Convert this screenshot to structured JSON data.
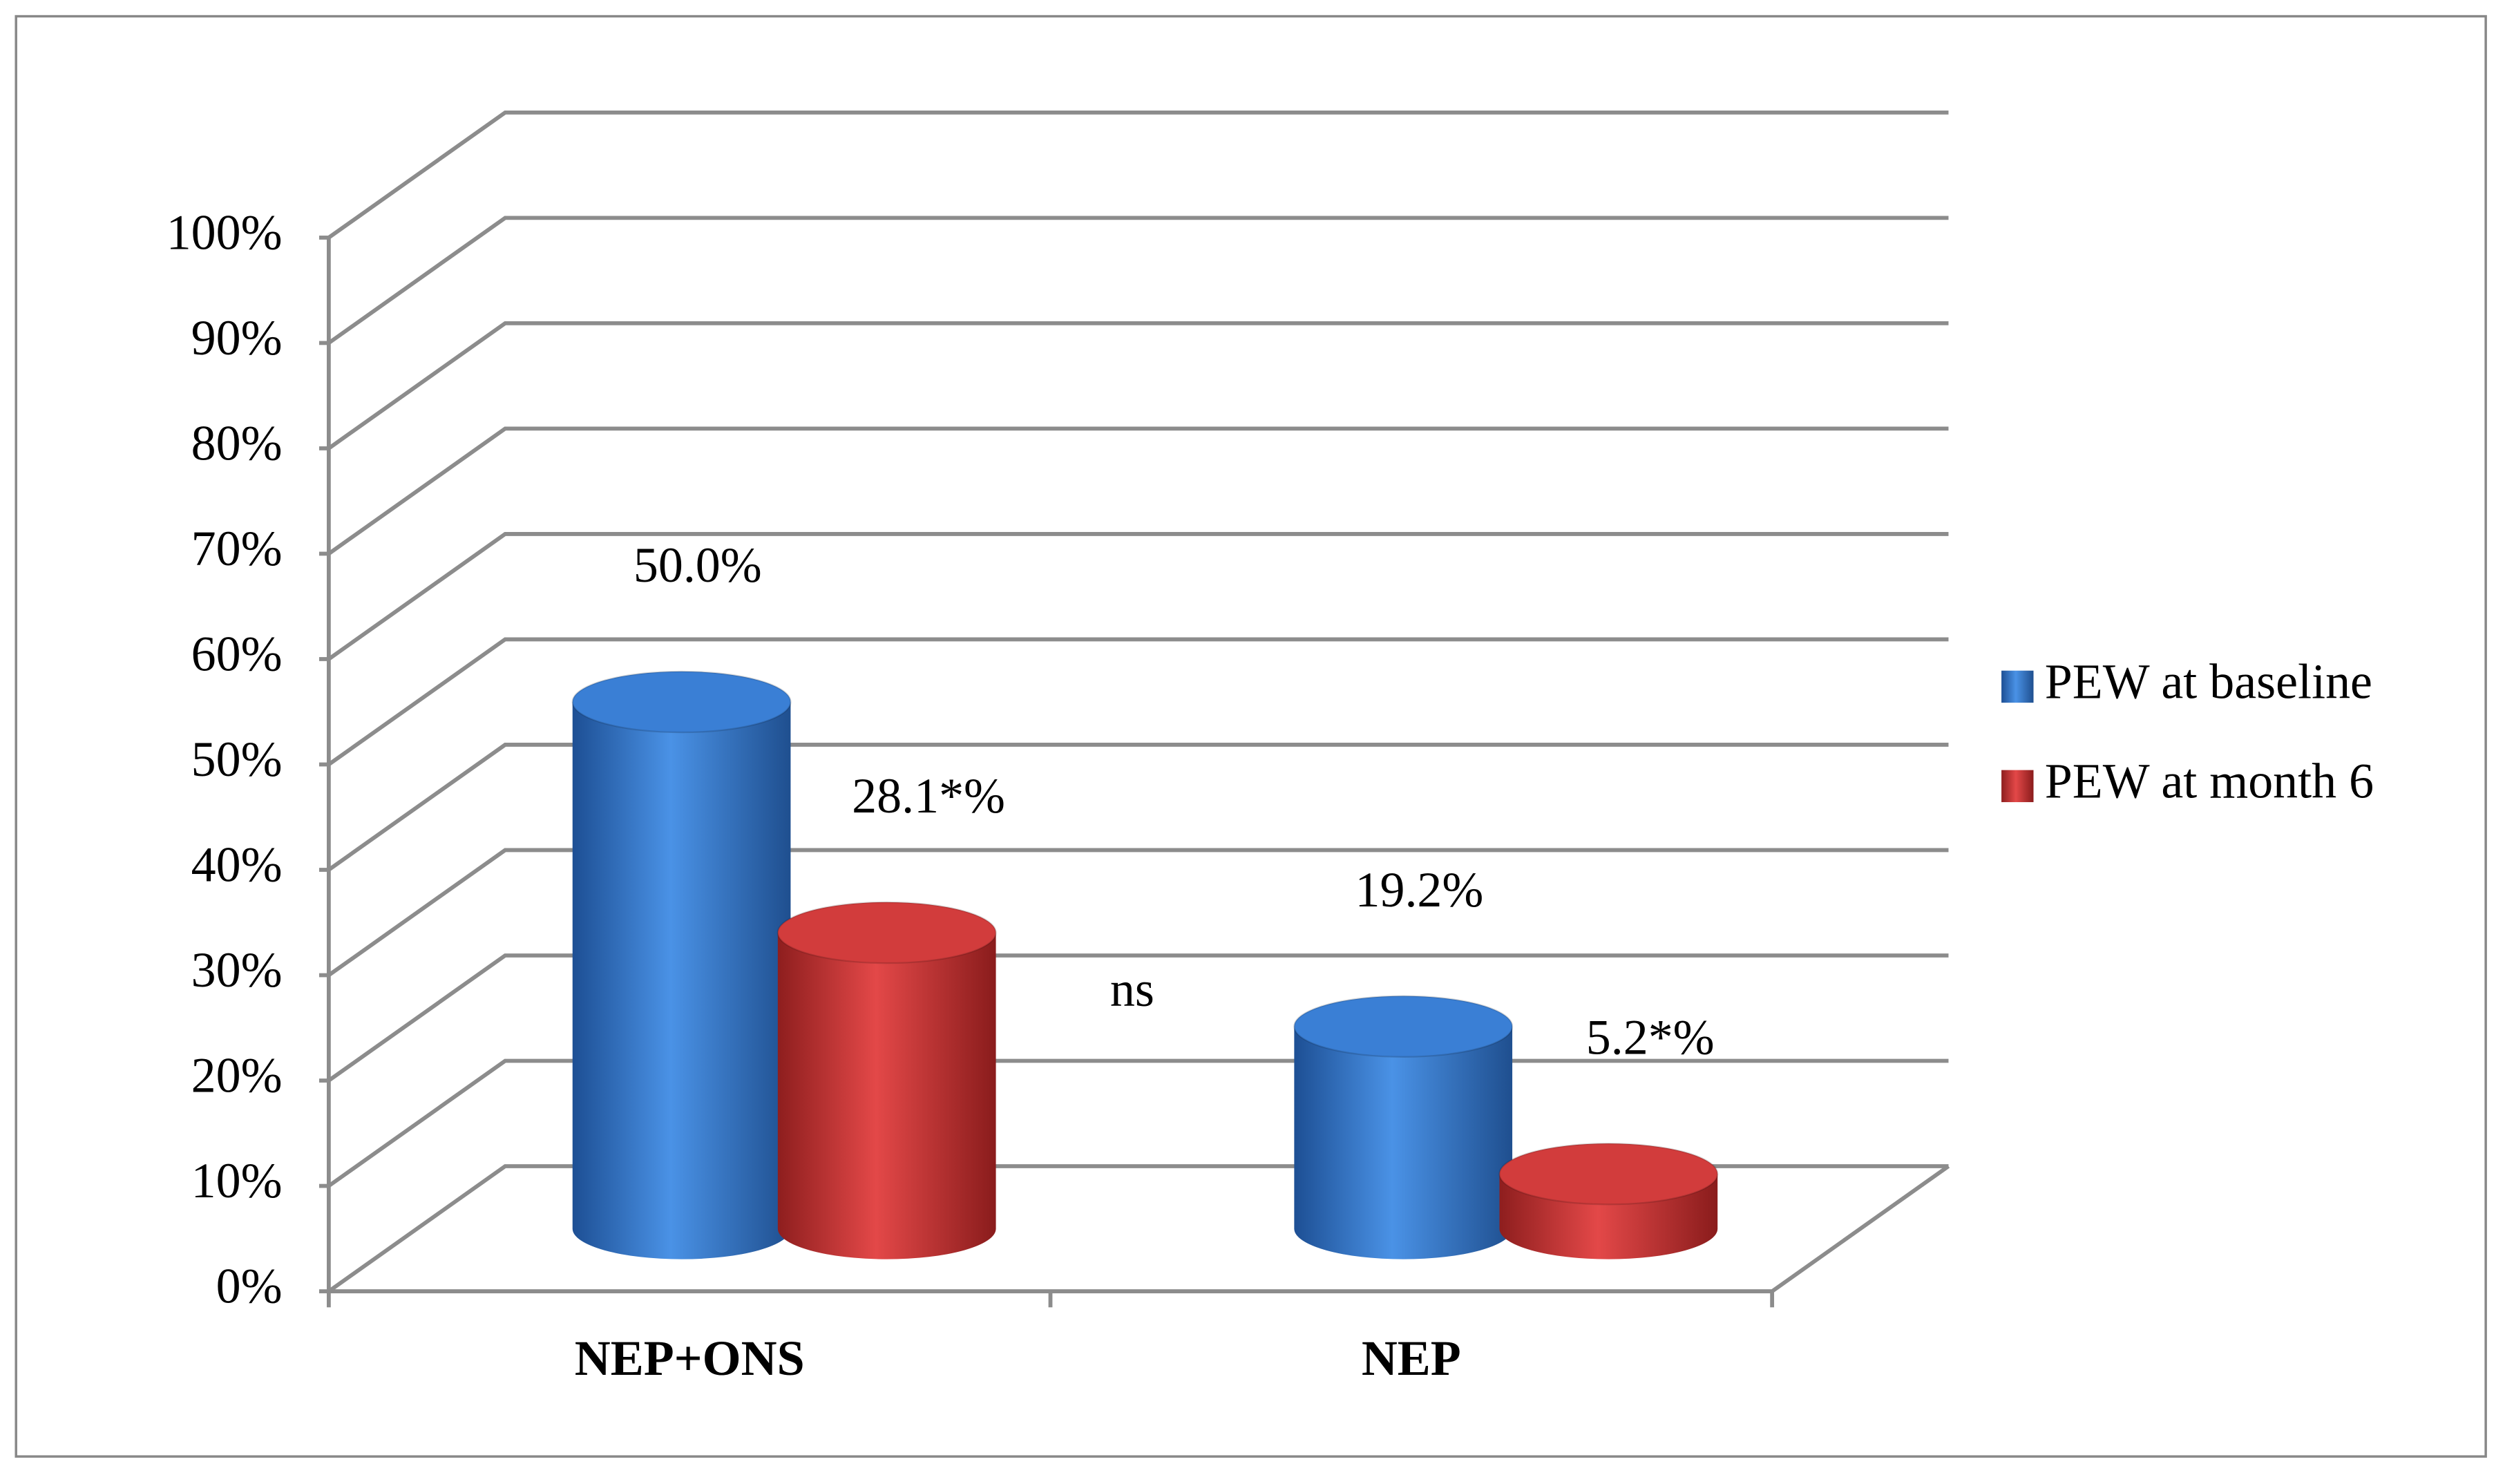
{
  "chart_data": {
    "type": "bar3d",
    "categories": [
      "NEP+ONS",
      "NEP"
    ],
    "series": [
      {
        "name": "PEW at baseline",
        "color": "#3a7fd5",
        "values": [
          50.0,
          19.2
        ],
        "value_labels": [
          "50.0%",
          "19.2%"
        ]
      },
      {
        "name": "PEW at month 6",
        "color": "#d23c3c",
        "values": [
          28.1,
          5.2
        ],
        "value_labels": [
          "28.1*%",
          "5.2*%"
        ]
      }
    ],
    "annotations": [
      "ns"
    ],
    "ylim": [
      0,
      100
    ],
    "yticks": [
      {
        "value": 0,
        "label": "0%"
      },
      {
        "value": 10,
        "label": "10%"
      },
      {
        "value": 20,
        "label": "20%"
      },
      {
        "value": 30,
        "label": "30%"
      },
      {
        "value": 40,
        "label": "40%"
      },
      {
        "value": 50,
        "label": "50%"
      },
      {
        "value": 60,
        "label": "60%"
      },
      {
        "value": 70,
        "label": "70%"
      },
      {
        "value": 80,
        "label": "80%"
      },
      {
        "value": 90,
        "label": "90%"
      },
      {
        "value": 100,
        "label": "100%"
      }
    ],
    "grid": true,
    "legend": "right"
  }
}
